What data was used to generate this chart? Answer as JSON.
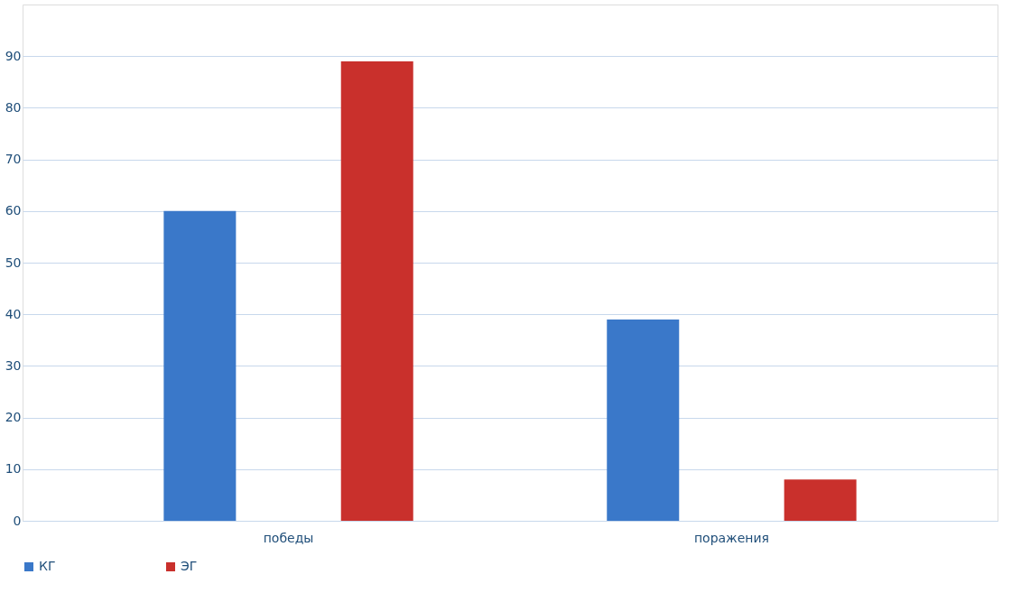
{
  "chart_data": {
    "type": "bar",
    "categories": [
      "победы",
      "поражения"
    ],
    "series": [
      {
        "name": "КГ",
        "color": "#3a78c9",
        "values": [
          60,
          39
        ]
      },
      {
        "name": "ЭГ",
        "color": "#c9302c",
        "values": [
          89,
          8
        ]
      }
    ],
    "ylim": [
      0,
      100
    ],
    "yticks": [
      0,
      10,
      20,
      30,
      40,
      50,
      60,
      70,
      80,
      90
    ],
    "grid": "y",
    "legend": "bottom"
  }
}
